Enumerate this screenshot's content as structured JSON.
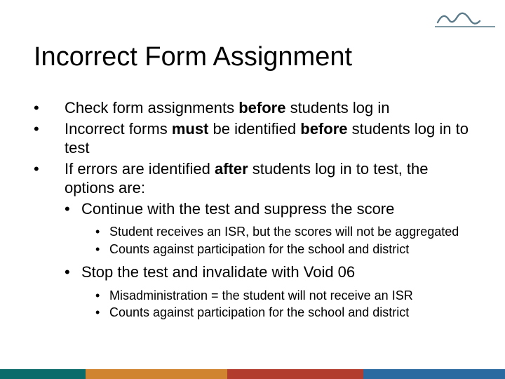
{
  "title": "Incorrect Form Assignment",
  "bullets": {
    "b1_pre": "Check form assignments ",
    "b1_bold": "before",
    "b1_post": " students log in",
    "b2_pre": "Incorrect forms ",
    "b2_bold1": "must",
    "b2_mid": " be identified ",
    "b2_bold2": "before",
    "b2_post": " students log in to test",
    "b3_pre": "If errors are identified ",
    "b3_bold": "after",
    "b3_post": " students log in to test, the options are:",
    "s1": "Continue with the test and suppress the score",
    "s1a": "Student receives an ISR, but the scores will not be aggregated",
    "s1b": "Counts against participation for the school and district",
    "s2": "Stop the test and invalidate with Void 06",
    "s2a": "Misadministration = the student will not receive an ISR",
    "s2b": "Counts against participation for the school and district"
  },
  "logo": {
    "stroke": "#5a7a8a",
    "line": "#7f99a5"
  },
  "footer": {
    "colors": [
      "#0a6b6b",
      "#d0842f",
      "#b23c2e",
      "#2a6aa0"
    ],
    "width_fracs": [
      0.17,
      0.28,
      0.27,
      0.28
    ]
  },
  "fonts": {
    "title_size": 38,
    "body_size": 22,
    "sub_size": 18
  }
}
